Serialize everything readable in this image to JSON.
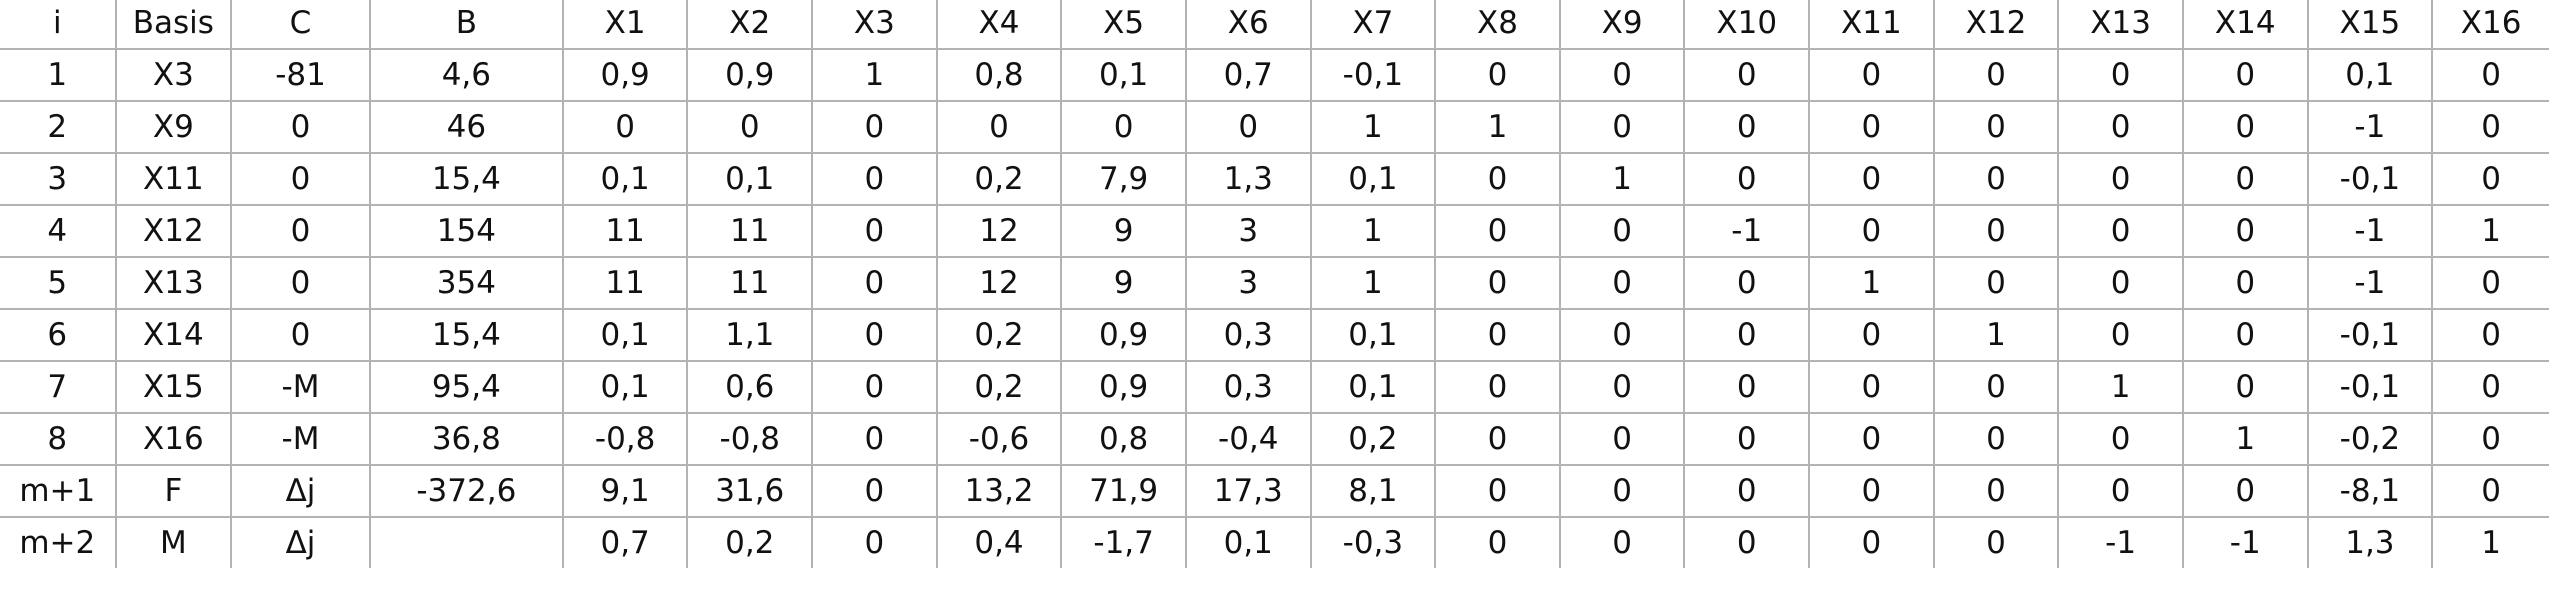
{
  "table": {
    "headers": [
      "i",
      "Basis",
      "C",
      "B",
      "X1",
      "X2",
      "X3",
      "X4",
      "X5",
      "X6",
      "X7",
      "X8",
      "X9",
      "X10",
      "X11",
      "X12",
      "X13",
      "X14",
      "X15",
      "X16"
    ],
    "rows": [
      [
        "1",
        "X3",
        "-81",
        "4,6",
        "0,9",
        "0,9",
        "1",
        "0,8",
        "0,1",
        "0,7",
        "-0,1",
        "0",
        "0",
        "0",
        "0",
        "0",
        "0",
        "0",
        "0,1",
        "0"
      ],
      [
        "2",
        "X9",
        "0",
        "46",
        "0",
        "0",
        "0",
        "0",
        "0",
        "0",
        "1",
        "1",
        "0",
        "0",
        "0",
        "0",
        "0",
        "0",
        "-1",
        "0"
      ],
      [
        "3",
        "X11",
        "0",
        "15,4",
        "0,1",
        "0,1",
        "0",
        "0,2",
        "7,9",
        "1,3",
        "0,1",
        "0",
        "1",
        "0",
        "0",
        "0",
        "0",
        "0",
        "-0,1",
        "0"
      ],
      [
        "4",
        "X12",
        "0",
        "154",
        "11",
        "11",
        "0",
        "12",
        "9",
        "3",
        "1",
        "0",
        "0",
        "-1",
        "0",
        "0",
        "0",
        "0",
        "-1",
        "1"
      ],
      [
        "5",
        "X13",
        "0",
        "354",
        "11",
        "11",
        "0",
        "12",
        "9",
        "3",
        "1",
        "0",
        "0",
        "0",
        "1",
        "0",
        "0",
        "0",
        "-1",
        "0"
      ],
      [
        "6",
        "X14",
        "0",
        "15,4",
        "0,1",
        "1,1",
        "0",
        "0,2",
        "0,9",
        "0,3",
        "0,1",
        "0",
        "0",
        "0",
        "0",
        "1",
        "0",
        "0",
        "-0,1",
        "0"
      ],
      [
        "7",
        "X15",
        "-M",
        "95,4",
        "0,1",
        "0,6",
        "0",
        "0,2",
        "0,9",
        "0,3",
        "0,1",
        "0",
        "0",
        "0",
        "0",
        "0",
        "1",
        "0",
        "-0,1",
        "0"
      ],
      [
        "8",
        "X16",
        "-M",
        "36,8",
        "-0,8",
        "-0,8",
        "0",
        "-0,6",
        "0,8",
        "-0,4",
        "0,2",
        "0",
        "0",
        "0",
        "0",
        "0",
        "0",
        "1",
        "-0,2",
        "0"
      ],
      [
        "m+1",
        "F",
        "Δj",
        "-372,6",
        "9,1",
        "31,6",
        "0",
        "13,2",
        "71,9",
        "17,3",
        "8,1",
        "0",
        "0",
        "0",
        "0",
        "0",
        "0",
        "0",
        "-8,1",
        "0"
      ],
      [
        "m+2",
        "M",
        "Δj",
        "",
        "0,7",
        "0,2",
        "0",
        "0,4",
        "-1,7",
        "0,1",
        "-0,3",
        "0",
        "0",
        "0",
        "0",
        "0",
        "-1",
        "-1",
        "1,3",
        "1"
      ]
    ]
  }
}
